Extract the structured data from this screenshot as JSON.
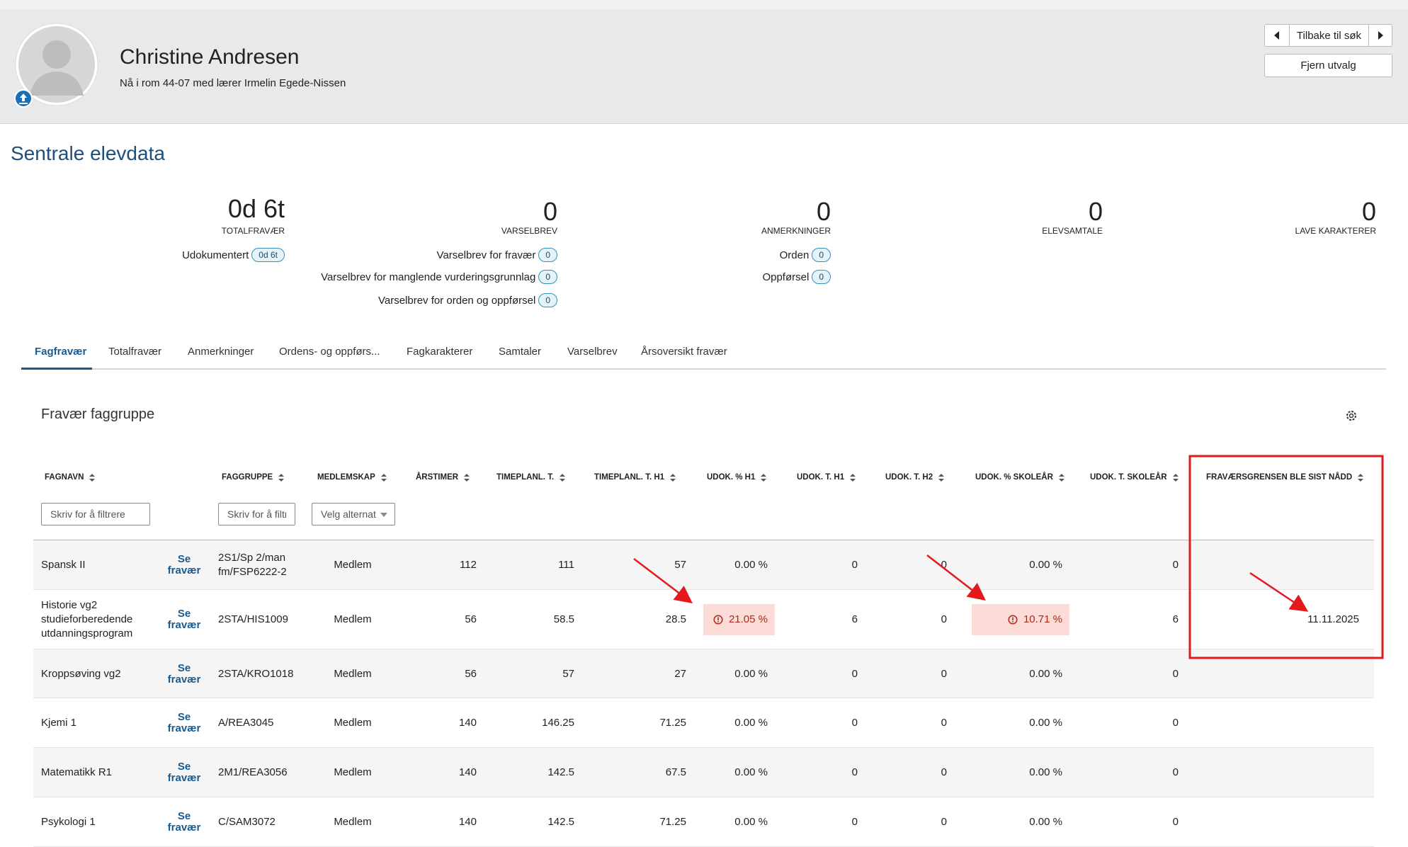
{
  "header": {
    "name": "Christine Andresen",
    "location": "Nå i rom 44-07 med lærer Irmelin Egede-Nissen",
    "buttons": {
      "back": "Tilbake til søk",
      "clear": "Fjern utvalg"
    }
  },
  "section_title": "Sentrale elevdata",
  "stats": [
    {
      "value": "0d 6t",
      "label": "TOTALFRAVÆR",
      "items": [
        {
          "label": "Udokumentert",
          "badge": "0d 6t"
        }
      ]
    },
    {
      "value": "0",
      "label": "VARSELBREV",
      "items": [
        {
          "label": "Varselbrev for fravær",
          "badge": "0"
        },
        {
          "label": "Varselbrev for manglende vurderingsgrunnlag",
          "badge": "0"
        },
        {
          "label": "Varselbrev for orden og oppførsel",
          "badge": "0"
        }
      ]
    },
    {
      "value": "0",
      "label": "ANMERKNINGER",
      "items": [
        {
          "label": "Orden",
          "badge": "0"
        },
        {
          "label": "Oppførsel",
          "badge": "0"
        }
      ]
    },
    {
      "value": "0",
      "label": "ELEVSAMTALE",
      "items": []
    },
    {
      "value": "0",
      "label": "LAVE KARAKTERER",
      "items": []
    }
  ],
  "tabs": {
    "items": [
      "Fagfravær",
      "Totalfravær",
      "Anmerkninger",
      "Ordens- og oppførs...",
      "Fagkarakterer",
      "Samtaler",
      "Varselbrev",
      "Årsoversikt fravær"
    ],
    "active": 0
  },
  "panel": {
    "title": "Fravær faggruppe",
    "table": {
      "columns": [
        {
          "label": "FAGNAVN",
          "filter": "Skriv for å filtrere"
        },
        {
          "label": "FAGGRUPPE",
          "filter": "Skriv for å filtrere"
        },
        {
          "label": "MEDLEMSKAP",
          "filter": "Velg alternativ"
        },
        {
          "label": "ÅRSTIMER"
        },
        {
          "label": "TIMEPLANL. T."
        },
        {
          "label": "TIMEPLANL. T. H1"
        },
        {
          "label": "UDOK. % H1"
        },
        {
          "label": "UDOK. T. H1"
        },
        {
          "label": "UDOK. T. H2"
        },
        {
          "label": "UDOK. % SKOLEÅR"
        },
        {
          "label": "UDOK. T. SKOLEÅR"
        },
        {
          "label": "FRAVÆRSGRENSEN BLE SIST NÅDD"
        }
      ],
      "rows": [
        {
          "link": "Se fravær",
          "cells": [
            "Spansk II",
            "2S1/Sp 2/man fm/FSP6222-2",
            "Medlem",
            "112",
            "111",
            "57",
            "0.00 %",
            "0",
            "0",
            "0.00 %",
            "0",
            null
          ]
        },
        {
          "link": "Se fravær",
          "cells": [
            "Historie vg2 studieforberedende utdanningsprogram",
            "2STA/HIS1009",
            "Medlem",
            "56",
            "58.5",
            "28.5",
            {
              "text": "21.05 %",
              "alert": true
            },
            "6",
            "0",
            {
              "text": "10.71 %",
              "alert": true
            },
            "6",
            "11.11.2025"
          ]
        },
        {
          "link": "Se fravær",
          "cells": [
            "Kroppsøving vg2",
            "2STA/KRO1018",
            "Medlem",
            "56",
            "57",
            "27",
            "0.00 %",
            "0",
            "0",
            "0.00 %",
            "0",
            null
          ]
        },
        {
          "link": "Se fravær",
          "cells": [
            "Kjemi 1",
            "A/REA3045",
            "Medlem",
            "140",
            "146.25",
            "71.25",
            "0.00 %",
            "0",
            "0",
            "0.00 %",
            "0",
            null
          ]
        },
        {
          "link": "Se fravær",
          "cells": [
            "Matematikk R1",
            "2M1/REA3056",
            "Medlem",
            "140",
            "142.5",
            "67.5",
            "0.00 %",
            "0",
            "0",
            "0.00 %",
            "0",
            null
          ]
        },
        {
          "link": "Se fravær",
          "cells": [
            "Psykologi 1",
            "C/SAM3072",
            "Medlem",
            "140",
            "142.5",
            "71.25",
            "0.00 %",
            "0",
            "0",
            "0.00 %",
            "0",
            null
          ]
        }
      ]
    }
  }
}
